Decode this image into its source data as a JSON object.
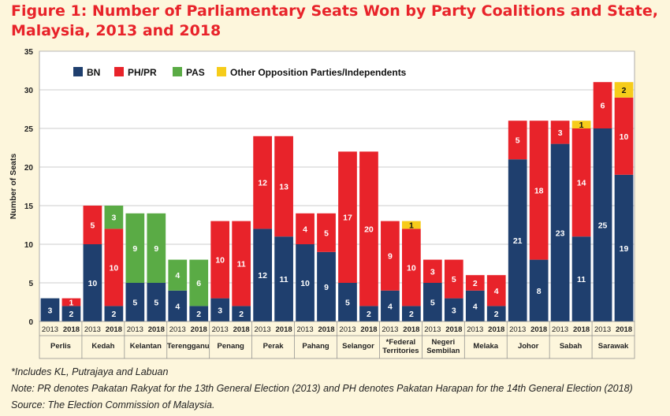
{
  "title": "Figure 1: Number of Parliamentary Seats Won by Party Coalitions and State, Malaysia, 2013 and 2018",
  "colors": {
    "BN": "#1f3f6e",
    "PH/PR": "#e8232a",
    "PAS": "#5aab45",
    "Other": "#f6cc1a"
  },
  "chart_data": {
    "type": "bar",
    "stacked": true,
    "ylabel": "Number of Seats",
    "ylim": [
      0,
      35
    ],
    "yticks": [
      0,
      5,
      10,
      15,
      20,
      25,
      30,
      35
    ],
    "legend": [
      "BN",
      "PH/PR",
      "PAS",
      "Other Opposition Parties/Independents"
    ],
    "legend_position": "top-left",
    "grid": true,
    "years": [
      "2013",
      "2018"
    ],
    "states": [
      "Perlis",
      "Kedah",
      "Kelantan",
      "Terengganu",
      "Penang",
      "Perak",
      "Pahang",
      "Selangor",
      "*Federal Territories",
      "Negeri Sembilan",
      "Melaka",
      "Johor",
      "Sabah",
      "Sarawak"
    ],
    "series": [
      {
        "name": "BN",
        "values": [
          3,
          2,
          10,
          2,
          5,
          5,
          4,
          2,
          3,
          2,
          12,
          11,
          10,
          9,
          5,
          2,
          4,
          2,
          5,
          3,
          4,
          2,
          21,
          8,
          23,
          11,
          25,
          19
        ]
      },
      {
        "name": "PH/PR",
        "values": [
          0,
          1,
          5,
          10,
          0,
          0,
          0,
          0,
          10,
          11,
          12,
          13,
          4,
          5,
          17,
          20,
          9,
          10,
          3,
          5,
          2,
          4,
          5,
          18,
          3,
          14,
          6,
          10
        ]
      },
      {
        "name": "PAS",
        "values": [
          0,
          0,
          0,
          3,
          9,
          9,
          4,
          6,
          0,
          0,
          0,
          0,
          0,
          0,
          0,
          0,
          0,
          0,
          0,
          0,
          0,
          0,
          0,
          0,
          0,
          0,
          0,
          0
        ]
      },
      {
        "name": "Other Opposition Parties/Independents",
        "values": [
          0,
          0,
          0,
          0,
          0,
          0,
          0,
          0,
          0,
          0,
          0,
          0,
          0,
          0,
          0,
          0,
          0,
          1,
          0,
          0,
          0,
          0,
          0,
          0,
          0,
          1,
          0,
          2
        ]
      }
    ]
  },
  "notes": [
    "*Includes KL, Putrajaya and Labuan",
    "Note: PR denotes Pakatan Rakyat for the 13th General Election (2013) and PH denotes Pakatan Harapan for the 14th General Election (2018)",
    "Source: The Election Commission of Malaysia."
  ]
}
